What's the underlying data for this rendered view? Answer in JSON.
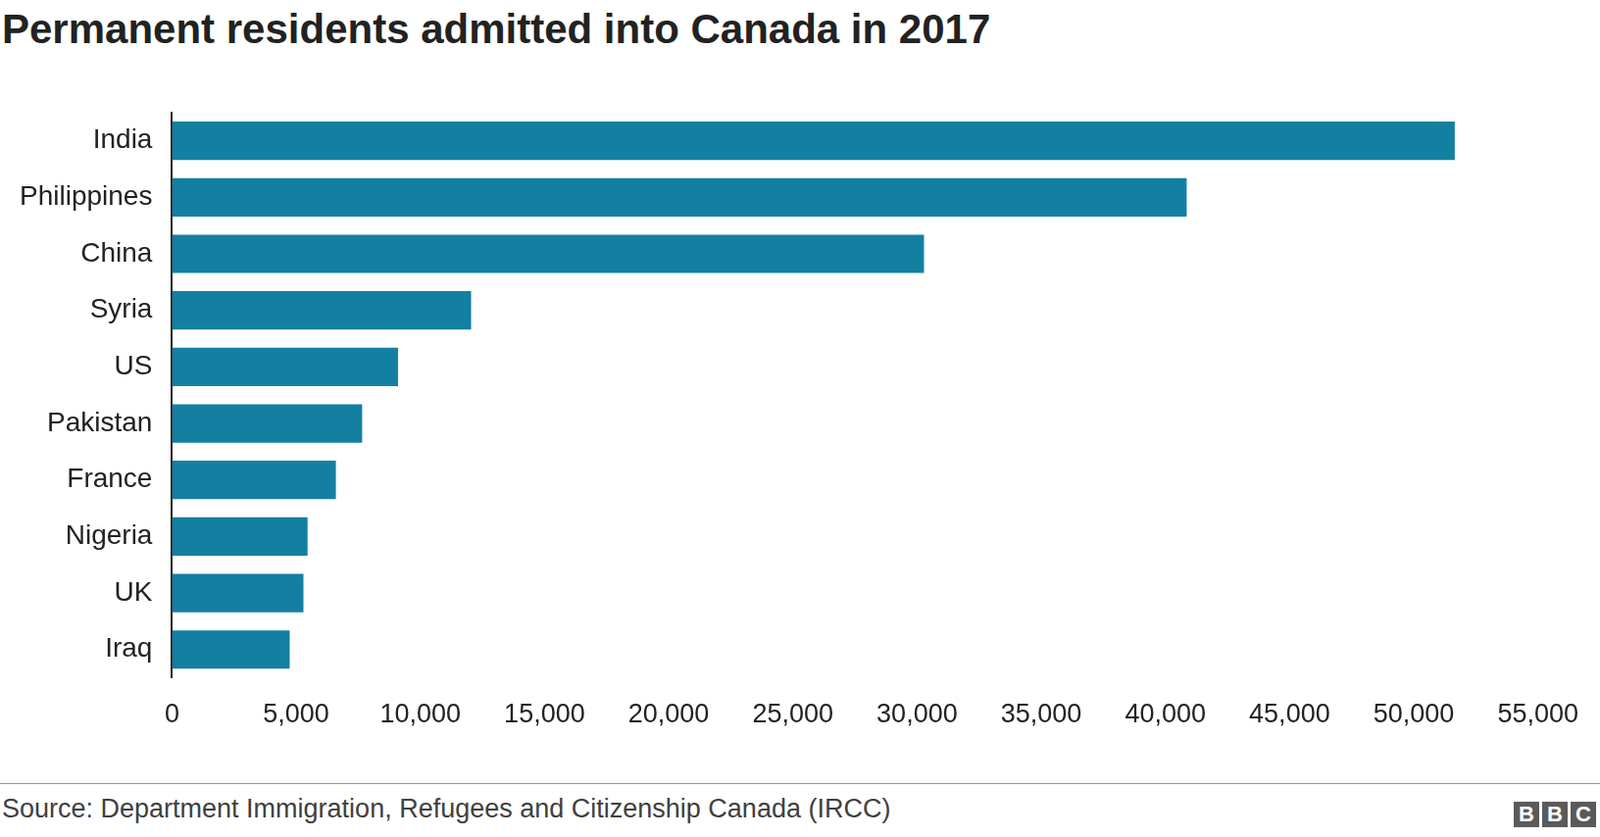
{
  "chart_data": {
    "type": "bar",
    "title": "Permanent residents admitted into Canada in 2017",
    "orientation": "horizontal",
    "categories": [
      "India",
      "Philippines",
      "China",
      "Syria",
      "US",
      "Pakistan",
      "France",
      "Nigeria",
      "UK",
      "Iraq"
    ],
    "values": [
      51651,
      40857,
      30279,
      12044,
      9104,
      7656,
      6600,
      5459,
      5293,
      4740
    ],
    "color": "#1380a1",
    "xlim": [
      0,
      55000
    ],
    "xticks": [
      0,
      {
        "value": 5000,
        "label": "5,000"
      },
      {
        "value": 10000,
        "label": "10,000"
      },
      {
        "value": 15000,
        "label": "15,000"
      },
      {
        "value": 20000,
        "label": "20,000"
      },
      {
        "value": 25000,
        "label": "25,000"
      },
      {
        "value": 30000,
        "label": "30,000"
      },
      {
        "value": 35000,
        "label": "35,000"
      },
      {
        "value": 40000,
        "label": "40,000"
      },
      {
        "value": 45000,
        "label": "45,000"
      },
      {
        "value": 50000,
        "label": "50,000"
      },
      {
        "value": 55000,
        "label": "55,000"
      }
    ],
    "grid": false,
    "source": "Source: Department Immigration, Refugees and Citizenship Canada (IRCC)",
    "credit": "BBC"
  }
}
